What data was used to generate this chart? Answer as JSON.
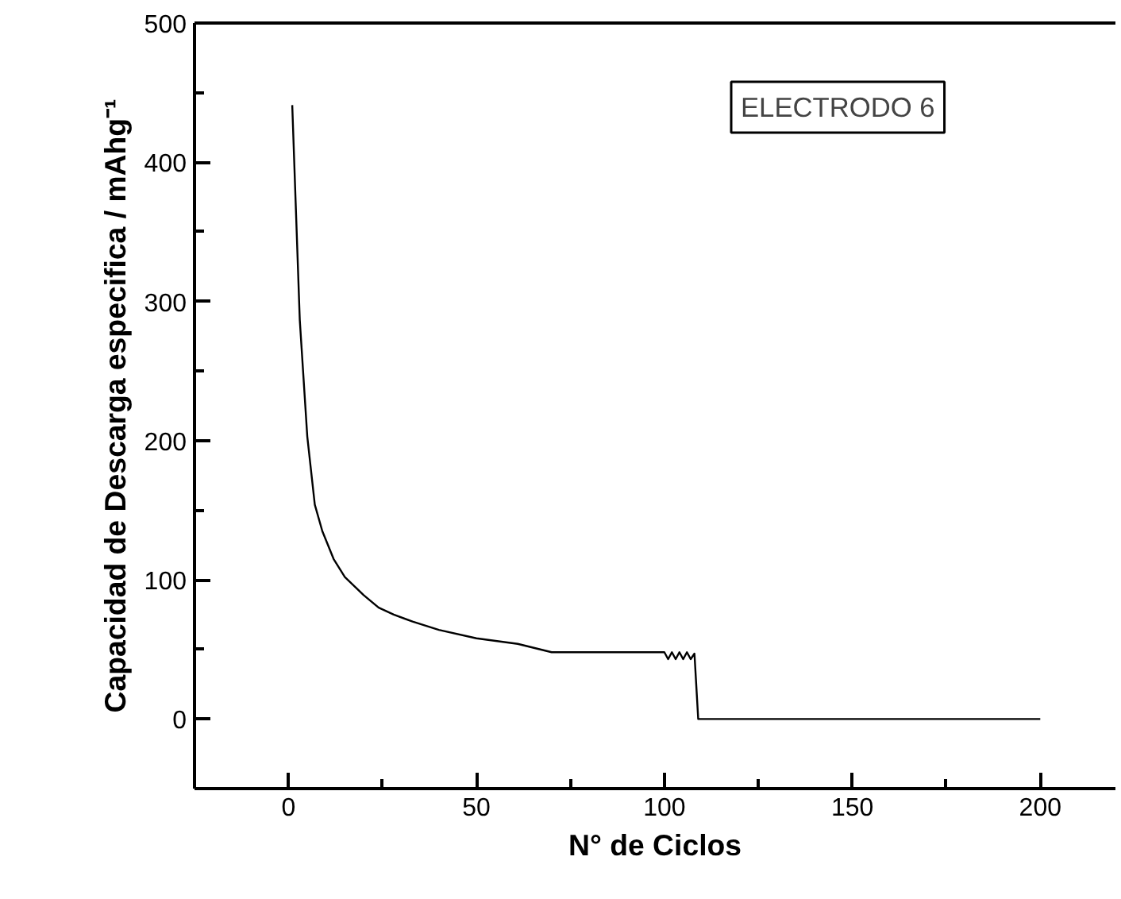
{
  "chart_data": {
    "type": "line",
    "xlabel": "N° de Ciclos",
    "ylabel": "Capacidad de Descarga especifica / mAhg⁻¹",
    "annotations": [
      "ELECTRODO 6"
    ],
    "x": [
      1,
      3,
      5,
      7,
      9,
      12,
      15,
      20,
      24,
      28,
      33,
      40,
      50,
      61,
      70,
      100,
      101,
      102,
      103,
      104,
      105,
      106,
      107,
      108,
      109,
      200
    ],
    "series": [
      {
        "color": "#000000",
        "values": [
          441,
          287,
          203,
          154,
          135,
          115,
          102,
          89,
          80,
          75,
          70,
          64,
          58,
          54,
          48,
          48,
          43,
          48,
          43,
          48,
          43,
          48,
          43,
          47,
          0,
          0
        ]
      }
    ],
    "xlim": [
      -25,
      220
    ],
    "ylim": [
      -50,
      500
    ],
    "xticks": [
      0,
      50,
      100,
      150,
      200,
      {
        "value": -25,
        "label": null
      },
      {
        "value": 25,
        "label": null
      },
      {
        "value": 75,
        "label": null
      },
      {
        "value": 125,
        "label": null
      },
      {
        "value": 175,
        "label": null
      }
    ],
    "yticks": [
      0,
      100,
      200,
      300,
      400,
      500,
      {
        "value": -50,
        "label": null
      },
      {
        "value": 50,
        "label": null
      },
      {
        "value": 150,
        "label": null
      },
      {
        "value": 250,
        "label": null
      },
      {
        "value": 350,
        "label": null
      },
      {
        "value": 450,
        "label": null
      }
    ],
    "grid": false,
    "marker": "none",
    "line_style": "solid"
  }
}
